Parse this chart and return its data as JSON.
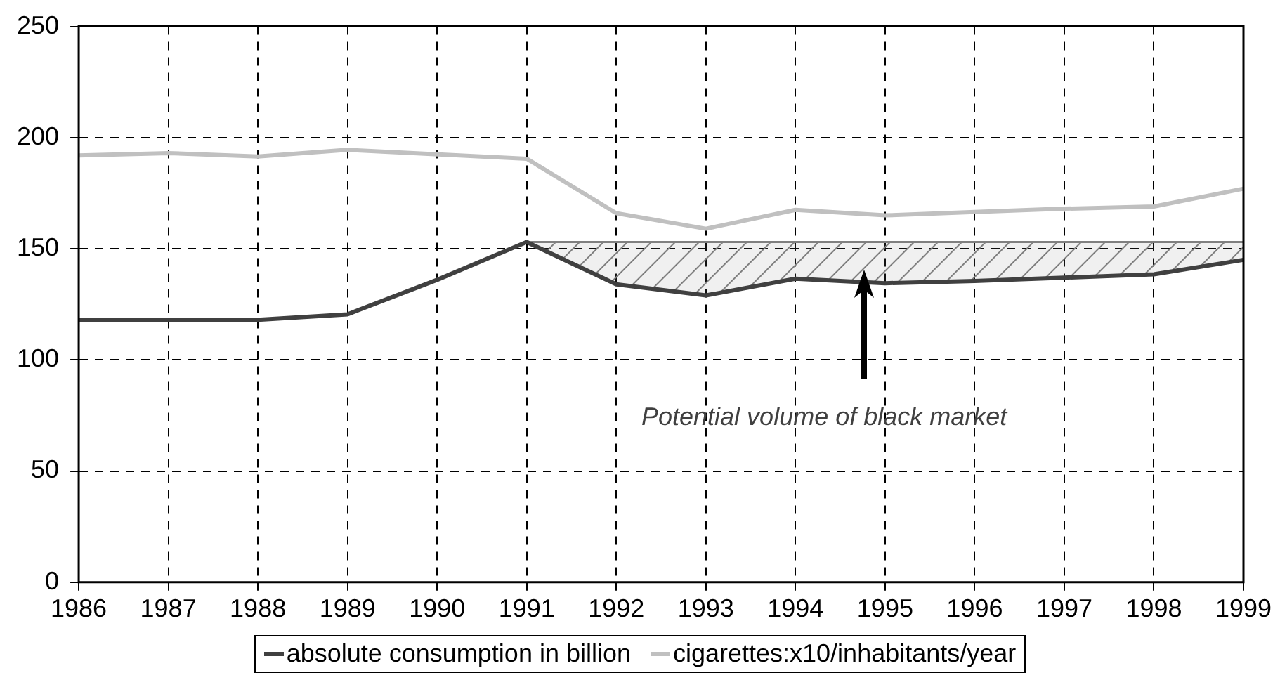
{
  "chart_data": {
    "type": "line",
    "categories": [
      "1986",
      "1987",
      "1988",
      "1989",
      "1990",
      "1991",
      "1992",
      "1993",
      "1994",
      "1995",
      "1996",
      "1997",
      "1998",
      "1999"
    ],
    "series": [
      {
        "name": "absolute consumption in billion",
        "color": "#404040",
        "values": [
          118,
          118,
          118,
          120.5,
          136,
          153,
          134,
          129,
          136.5,
          134.5,
          135.5,
          137,
          138.5,
          145
        ]
      },
      {
        "type": "area",
        "color": "#808080",
        "values": [
          null,
          null,
          null,
          null,
          null,
          153,
          153,
          153,
          153,
          153,
          153,
          153,
          153,
          153
        ]
      },
      {
        "name": "cigarettes:x10/inhabitants/year",
        "color": "#c0c0c0",
        "values": [
          192,
          193,
          191.5,
          194.5,
          null,
          190.5,
          166,
          159,
          167.5,
          165,
          166.5,
          168,
          169,
          177
        ]
      }
    ],
    "ylim": [
      0,
      250
    ],
    "yticks": [
      0,
      50,
      100,
      150,
      200,
      250
    ],
    "grid": true,
    "legend": "bottom",
    "marker": "none",
    "annotations": [
      "Potential volume of black market"
    ]
  }
}
